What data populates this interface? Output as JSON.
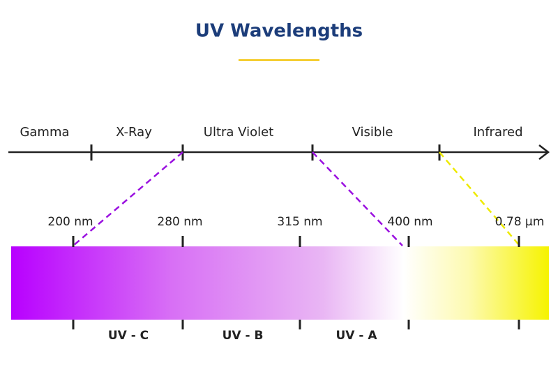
{
  "title": "UV Wavelengths",
  "spectrum": [
    "Gamma",
    "X-Ray",
    "Ultra Violet",
    "Visible",
    "Infrared"
  ],
  "wavelengths": [
    "200 nm",
    "280 nm",
    "315 nm",
    "400 nm",
    "0.78 µm"
  ],
  "bands": [
    "UV - C",
    "UV - B",
    "UV - A"
  ]
}
